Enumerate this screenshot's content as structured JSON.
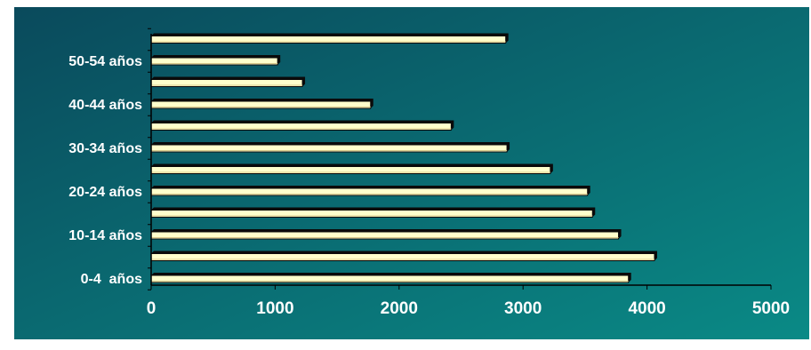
{
  "colors": {
    "background_start": "#0a4a5c",
    "background_end": "#0a8a86",
    "bar_face": "#ffffcc",
    "bar_shadow": "#0a0a0a",
    "axis": "#000000",
    "text": "#ffffff"
  },
  "chart_data": {
    "type": "bar",
    "orientation": "horizontal",
    "title": "",
    "xlabel": "",
    "ylabel": "",
    "xlim": [
      0,
      5000
    ],
    "x_ticks": [
      "0",
      "1000",
      "2000",
      "3000",
      "4000",
      "5000"
    ],
    "categories": [
      "0-4  años",
      "",
      "10-14 años",
      "",
      "20-24 años",
      "",
      "30-34 años",
      "",
      "40-44 años",
      "",
      "50-54 años",
      ""
    ],
    "values": [
      3850,
      4060,
      3770,
      3560,
      3520,
      3220,
      2870,
      2420,
      1770,
      1220,
      1020,
      2860
    ],
    "grid": false,
    "legend": "none"
  }
}
